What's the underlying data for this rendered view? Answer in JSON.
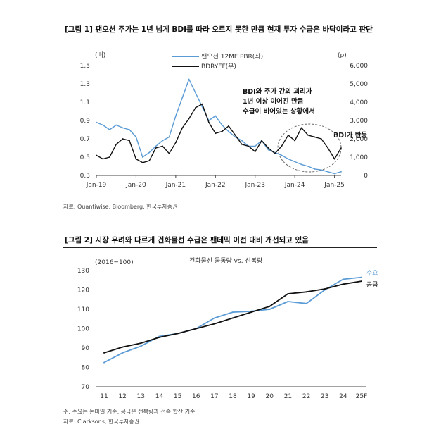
{
  "figure1": {
    "title": "[그림 1] 팬오션 주가는 1년 넘게 BDI를 따라 오르지 못한 만큼 현재 투자 수급은 바닥이라고 판단",
    "source": "자료: Quantiwise, Bloomberg, 한국투자증권",
    "left_unit": "(배)",
    "right_unit": "(p)",
    "legend": [
      "팬오션 12MF PBR(좌)",
      "BDRYFF(우)"
    ],
    "annotation": [
      "BDI와 주가 간의 괴리가",
      "1년 이상 이어진 만큼",
      "수급이 비어있는 상황에서"
    ],
    "annotation2": "BDI가 반등",
    "colors": {
      "pbr": "#5b9bd5",
      "bdi": "#111111"
    }
  },
  "figure2": {
    "title": "[그림 2] 시장 우려와 다르게 건화물선 수급은 팬데믹 이전 대비 개선되고 있음",
    "unit": "(2016=100)",
    "chart_title": "건화물선 물동량 vs. 선복량",
    "note": "주: 수요는 톤마일 기준, 공급은 선복량과 선속 합산 기준",
    "source": "자료: Clarksons, 한국투자증권",
    "colors": {
      "demand": "#5b9bd5",
      "supply": "#111111"
    }
  },
  "chart_data": [
    {
      "type": "line",
      "title": "",
      "x_ticks": [
        "Jan-19",
        "Jan-20",
        "Jan-21",
        "Jan-22",
        "Jan-23",
        "Jan-24",
        "Jan-25"
      ],
      "xlim": [
        "2019-01",
        "2025-03"
      ],
      "y_left": {
        "label": "(배)",
        "ticks": [
          "0.3",
          "0.5",
          "0.7",
          "0.9",
          "1.1",
          "1.3",
          "1.5"
        ],
        "range": [
          0.3,
          1.5
        ]
      },
      "y_right": {
        "label": "(p)",
        "ticks": [
          "0",
          "1,000",
          "2,000",
          "3,000",
          "4,000",
          "5,000",
          "6,000"
        ],
        "range": [
          0,
          6000
        ]
      },
      "series": [
        {
          "name": "팬오션 12MF PBR(좌)",
          "axis": "left",
          "x": [
            "2019-01",
            "2019-03",
            "2019-05",
            "2019-07",
            "2019-09",
            "2019-11",
            "2020-01",
            "2020-03",
            "2020-05",
            "2020-07",
            "2020-09",
            "2020-11",
            "2021-01",
            "2021-03",
            "2021-05",
            "2021-07",
            "2021-09",
            "2021-11",
            "2022-01",
            "2022-03",
            "2022-05",
            "2022-07",
            "2022-09",
            "2022-11",
            "2023-01",
            "2023-03",
            "2023-05",
            "2023-07",
            "2023-09",
            "2023-11",
            "2024-01",
            "2024-03",
            "2024-05",
            "2024-07",
            "2024-09",
            "2024-11",
            "2025-01",
            "2025-03"
          ],
          "values": [
            0.88,
            0.85,
            0.8,
            0.85,
            0.82,
            0.8,
            0.72,
            0.5,
            0.55,
            0.62,
            0.68,
            0.72,
            0.95,
            1.15,
            1.35,
            1.2,
            1.05,
            0.9,
            0.95,
            0.85,
            0.78,
            0.72,
            0.68,
            0.62,
            0.62,
            0.68,
            0.58,
            0.55,
            0.52,
            0.48,
            0.45,
            0.42,
            0.4,
            0.37,
            0.36,
            0.34,
            0.32,
            0.34
          ]
        },
        {
          "name": "BDRYFF(우)",
          "axis": "right",
          "x": [
            "2019-01",
            "2019-03",
            "2019-05",
            "2019-07",
            "2019-09",
            "2019-11",
            "2020-01",
            "2020-03",
            "2020-05",
            "2020-07",
            "2020-09",
            "2020-11",
            "2021-01",
            "2021-03",
            "2021-05",
            "2021-07",
            "2021-09",
            "2021-11",
            "2022-01",
            "2022-03",
            "2022-05",
            "2022-07",
            "2022-09",
            "2022-11",
            "2023-01",
            "2023-03",
            "2023-05",
            "2023-07",
            "2023-09",
            "2023-11",
            "2024-01",
            "2024-03",
            "2024-05",
            "2024-07",
            "2024-09",
            "2024-11",
            "2025-01",
            "2025-03"
          ],
          "values": [
            1100,
            900,
            1000,
            1700,
            2000,
            1900,
            900,
            700,
            800,
            1500,
            1600,
            1200,
            1800,
            2600,
            3100,
            3700,
            3900,
            2900,
            2300,
            2400,
            2700,
            2200,
            1700,
            1600,
            1300,
            1900,
            1500,
            1200,
            1600,
            2200,
            1900,
            2600,
            2200,
            2100,
            2000,
            1500,
            900,
            1500
          ]
        }
      ]
    },
    {
      "type": "line",
      "title": "건화물선 물동량 vs. 선복량",
      "categories": [
        "11",
        "12",
        "13",
        "14",
        "15",
        "16",
        "17",
        "18",
        "19",
        "20",
        "21",
        "22",
        "23",
        "24",
        "25F"
      ],
      "ylim": [
        70,
        130
      ],
      "y_ticks": [
        "70",
        "80",
        "90",
        "100",
        "110",
        "120",
        "130"
      ],
      "ylabel": "(2016=100)",
      "series": [
        {
          "name": "수요",
          "values": [
            82.5,
            87.5,
            91,
            96,
            97.5,
            100,
            105.5,
            108.5,
            109,
            110,
            114,
            113,
            120,
            125.5,
            126.5
          ]
        },
        {
          "name": "공급",
          "values": [
            87.5,
            90.5,
            92.5,
            95.5,
            97.5,
            100,
            102.5,
            105.5,
            108.5,
            111.5,
            118,
            119,
            120.5,
            123,
            124.5
          ]
        }
      ]
    }
  ]
}
